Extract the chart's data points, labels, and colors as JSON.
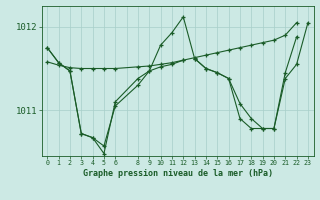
{
  "title": "Graphe pression niveau de la mer (hPa)",
  "bg_color": "#cce9e4",
  "line_color": "#1a5c28",
  "grid_color": "#a8cfc9",
  "xlim": [
    -0.5,
    23.5
  ],
  "ylim": [
    1010.45,
    1012.25
  ],
  "yticks": [
    1011,
    1012
  ],
  "xticks": [
    0,
    1,
    2,
    3,
    4,
    5,
    6,
    8,
    9,
    10,
    11,
    12,
    13,
    14,
    15,
    16,
    17,
    18,
    19,
    20,
    21,
    22,
    23
  ],
  "series": [
    {
      "x": [
        0,
        1,
        2,
        3,
        4,
        5,
        6,
        8,
        9,
        10,
        11,
        12,
        13,
        14,
        15,
        16,
        17,
        18,
        19,
        20,
        21,
        22,
        23
      ],
      "y": [
        1011.75,
        1011.57,
        1011.47,
        1010.72,
        1010.67,
        1010.57,
        1011.05,
        1011.3,
        1011.47,
        1011.78,
        1011.93,
        1012.12,
        1011.62,
        1011.5,
        1011.45,
        1011.38,
        1011.08,
        1010.9,
        1010.78,
        1010.78,
        1011.45,
        1011.88,
        null
      ]
    },
    {
      "x": [
        0,
        1,
        2,
        3,
        4,
        5,
        6,
        8,
        9,
        10,
        11,
        12,
        13,
        14,
        15,
        16,
        17,
        18,
        19,
        20,
        21,
        22,
        23
      ],
      "y": [
        1011.58,
        1011.54,
        1011.51,
        1011.5,
        1011.5,
        1011.5,
        1011.5,
        1011.52,
        1011.53,
        1011.55,
        1011.57,
        1011.6,
        1011.63,
        1011.66,
        1011.69,
        1011.72,
        1011.75,
        1011.78,
        1011.81,
        1011.84,
        1011.9,
        1012.05,
        null
      ]
    },
    {
      "x": [
        0,
        1,
        2,
        3,
        4,
        5,
        6,
        8,
        9,
        10,
        11,
        12,
        13,
        14,
        15,
        16,
        17,
        18,
        19,
        20,
        21,
        22,
        23
      ],
      "y": [
        1011.75,
        1011.57,
        1011.47,
        1010.72,
        1010.67,
        1010.48,
        1011.1,
        1011.38,
        1011.47,
        1011.52,
        1011.55,
        1011.6,
        null,
        null,
        null,
        null,
        null,
        null,
        null,
        null,
        null,
        null,
        null
      ]
    },
    {
      "x": [
        13,
        14,
        15,
        16,
        17,
        18,
        19,
        20,
        21,
        22,
        23
      ],
      "y": [
        1011.62,
        1011.5,
        1011.45,
        1011.38,
        1010.9,
        1010.78,
        1010.78,
        1010.78,
        1011.38,
        1011.55,
        1012.05
      ]
    }
  ]
}
